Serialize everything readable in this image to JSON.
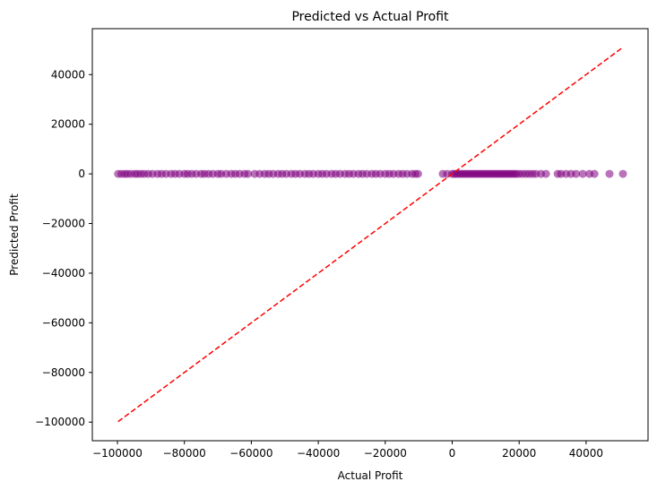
{
  "chart_data": {
    "type": "scatter",
    "title": "Predicted vs Actual Profit",
    "xlabel": "Actual Profit",
    "ylabel": "Predicted Profit",
    "xlim": [
      -107500,
      58500
    ],
    "ylim": [
      -107500,
      58500
    ],
    "xticks": [
      -100000,
      -80000,
      -60000,
      -40000,
      -20000,
      0,
      20000,
      40000
    ],
    "yticks": [
      -100000,
      -80000,
      -60000,
      -40000,
      -20000,
      0,
      20000,
      40000
    ],
    "tick_labels": [
      "−100000",
      "−80000",
      "−60000",
      "−40000",
      "−20000",
      "0",
      "20000",
      "40000"
    ],
    "grid": false,
    "point_color": "#800080",
    "line_color": "#ff0000",
    "reference_line": {
      "x": [
        -99800,
        51000
      ],
      "y": [
        -99800,
        51000
      ],
      "style": "dashed"
    },
    "series": [
      {
        "x": [
          -99800,
          -98800,
          -97800,
          -97000,
          -96000,
          -94800,
          -94000,
          -93000,
          -92000,
          -90800,
          -89500,
          -88000,
          -86800,
          -85500,
          -84000,
          -82800,
          -81500,
          -80000,
          -79000,
          -77800,
          -76500,
          -75000,
          -74000,
          -72800,
          -71500,
          -70000,
          -69000,
          -67500,
          -66000,
          -64800,
          -63500,
          -62000,
          -61000,
          -59000,
          -57500,
          -56000,
          -54800,
          -53500,
          -52000,
          -50800,
          -49500,
          -48000,
          -46800,
          -45500,
          -44000,
          -42800,
          -41500,
          -40000,
          -38800,
          -37500,
          -36000,
          -34800,
          -33500,
          -32000,
          -30800,
          -29500,
          -28000,
          -26800,
          -25500,
          -24000,
          -22800,
          -21500,
          -20000,
          -18800,
          -17500,
          -16000,
          -14800,
          -13500,
          -12000,
          -11000,
          -10200,
          -2800,
          -1500,
          0,
          600,
          1200,
          1800,
          2400,
          3000,
          3600,
          4200,
          4800,
          5400,
          6000,
          6600,
          7200,
          7800,
          8400,
          9000,
          9600,
          10200,
          10800,
          11400,
          12000,
          12600,
          13200,
          13800,
          14400,
          15000,
          15600,
          16200,
          16800,
          17400,
          18000,
          18600,
          19200,
          20000,
          21000,
          22000,
          23000,
          24000,
          25000,
          26500,
          28000,
          31500,
          32500,
          34000,
          35500,
          37000,
          39000,
          41000,
          42500,
          47000,
          51000
        ],
        "y": [
          0,
          0,
          0,
          0,
          0,
          0,
          0,
          0,
          0,
          0,
          0,
          0,
          0,
          0,
          0,
          0,
          0,
          0,
          0,
          0,
          0,
          0,
          0,
          0,
          0,
          0,
          0,
          0,
          0,
          0,
          0,
          0,
          0,
          0,
          0,
          0,
          0,
          0,
          0,
          0,
          0,
          0,
          0,
          0,
          0,
          0,
          0,
          0,
          0,
          0,
          0,
          0,
          0,
          0,
          0,
          0,
          0,
          0,
          0,
          0,
          0,
          0,
          0,
          0,
          0,
          0,
          0,
          0,
          0,
          0,
          0,
          0,
          0,
          0,
          0,
          0,
          0,
          0,
          0,
          0,
          0,
          0,
          0,
          0,
          0,
          0,
          0,
          0,
          0,
          0,
          0,
          0,
          0,
          0,
          0,
          0,
          0,
          0,
          0,
          0,
          0,
          0,
          0,
          0,
          0,
          0,
          0,
          0,
          0,
          0,
          0,
          0,
          0,
          0,
          0,
          0,
          0,
          0,
          0,
          0,
          0,
          0,
          0,
          0
        ]
      }
    ]
  }
}
